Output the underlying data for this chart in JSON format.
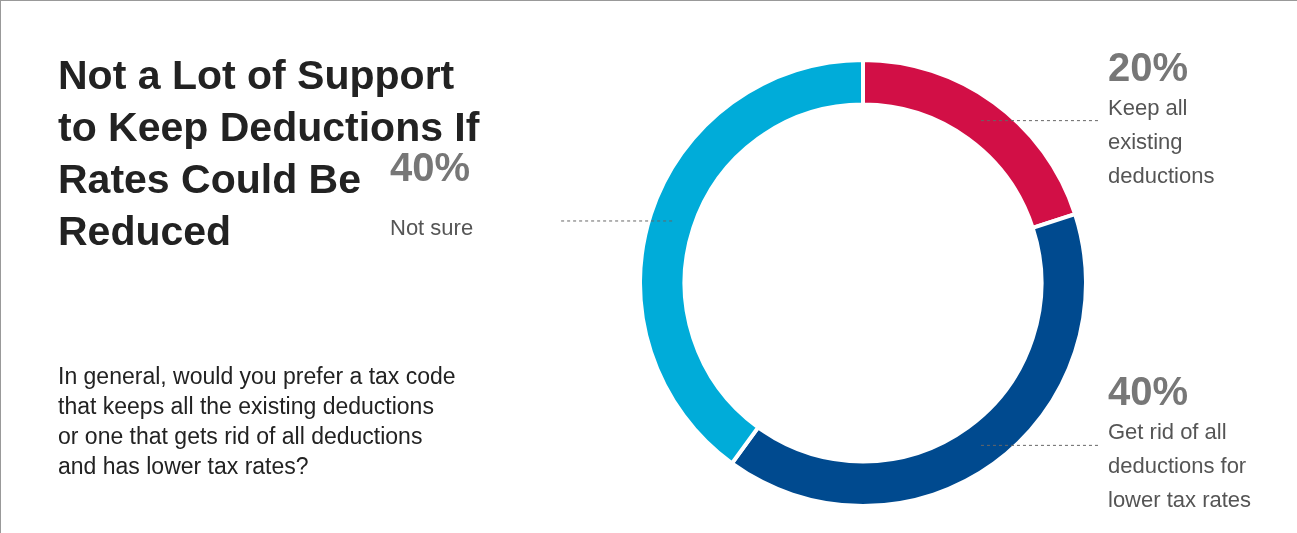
{
  "chart_data": {
    "type": "donut",
    "title": "Not a Lot of Support to Keep Deductions If Rates Could Be Reduced",
    "subtitle": "In general, would you prefer a tax code that keeps all the existing deductions or one that gets rid of all deductions and has lower tax rates?",
    "categories": [
      "Keep all existing deductions",
      "Get rid of all deductions for lower tax rates",
      "Not sure"
    ],
    "values": [
      20,
      40,
      40
    ],
    "value_labels": [
      "20%",
      "40%",
      "40%"
    ],
    "colors": [
      "#d20f46",
      "#004a8f",
      "#00acd9"
    ],
    "legend": false
  }
}
